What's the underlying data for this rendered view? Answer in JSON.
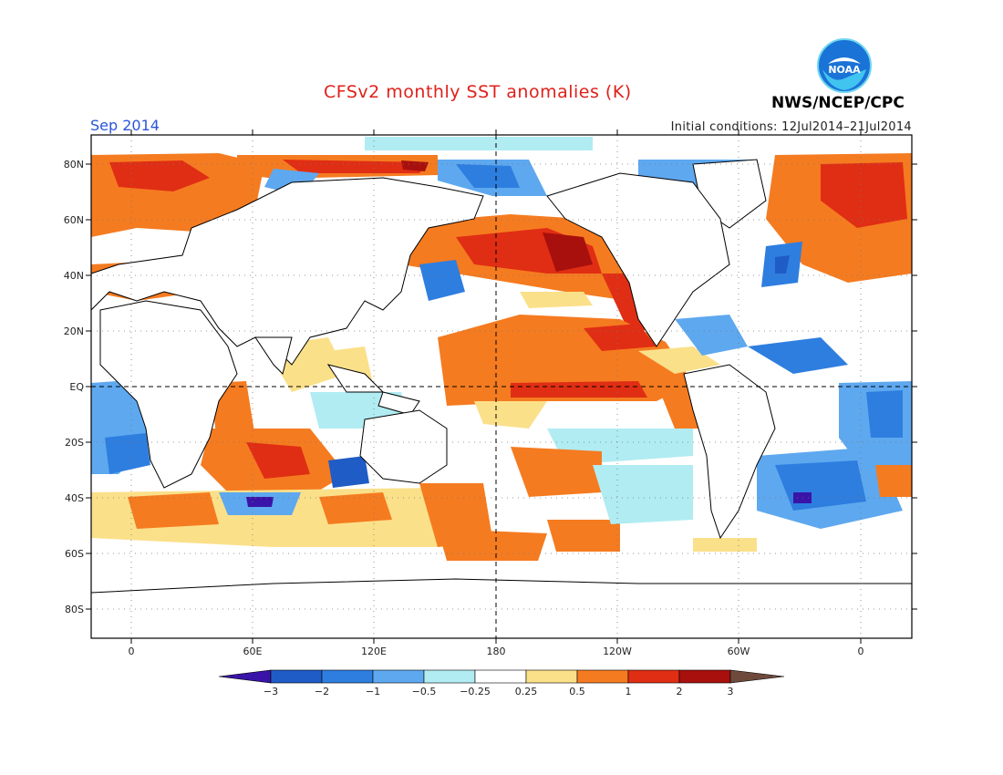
{
  "header": {
    "title": "CFSv2 monthly SST anomalies (K)",
    "agency": "NWS/NCEP/CPC",
    "logo_text": "NOAA",
    "valid_month": "Sep 2014",
    "initial_conditions": "Initial conditions: 12Jul2014–21Jul2014"
  },
  "map": {
    "lat_labels": [
      "80N",
      "60N",
      "40N",
      "20N",
      "EQ",
      "20S",
      "40S",
      "60S",
      "80S"
    ],
    "lon_labels": [
      "0",
      "60E",
      "120E",
      "180",
      "120W",
      "60W",
      "0"
    ]
  },
  "colorbar": {
    "tick_labels": [
      "−3",
      "−2",
      "−1",
      "−0.5",
      "−0.25",
      "0.25",
      "0.5",
      "1",
      "2",
      "3"
    ],
    "colors": [
      "#3a14a8",
      "#1f5cc6",
      "#2e7ee0",
      "#5ea8ef",
      "#b0ecf2",
      "#ffffff",
      "#fbe08a",
      "#f57b20",
      "#e02e14",
      "#a8100e",
      "#6e4a3c"
    ]
  }
}
